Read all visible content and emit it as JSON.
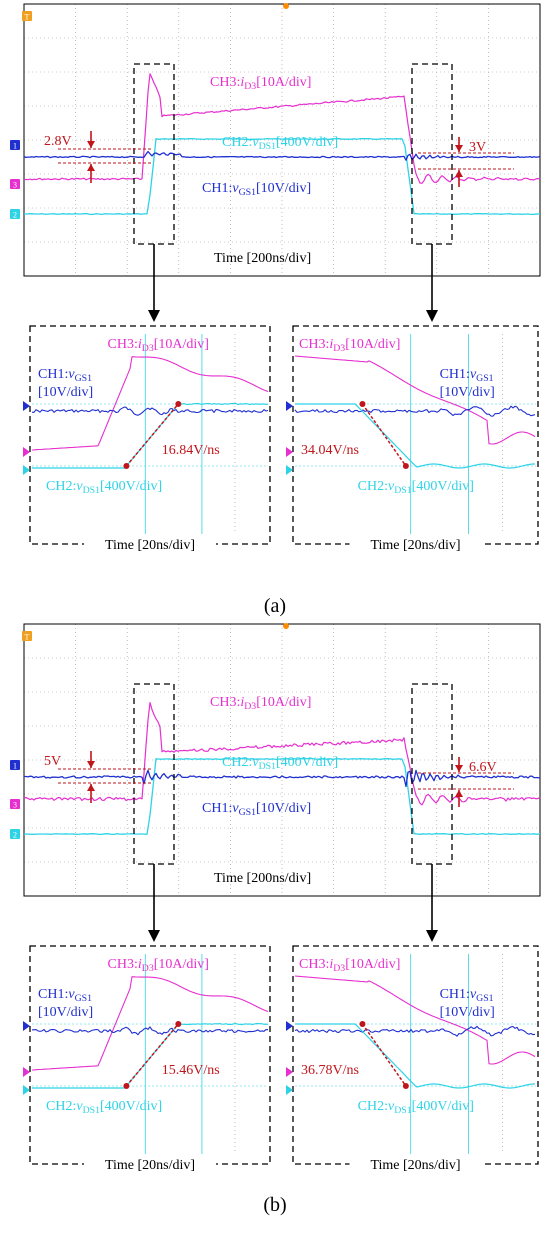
{
  "colors": {
    "ch1": "#1f2fd0",
    "ch2": "#2ed3e6",
    "ch3": "#e62fcf",
    "annotation": "#c0151b",
    "grid": "#9a9a9a",
    "ref_dot": "#ff8c00",
    "box": "#000000"
  },
  "panels": [
    {
      "label": "(a)",
      "main": {
        "time_label": "Time [200ns/div]",
        "ch3_label": {
          "pre": "CH3:",
          "var": "i",
          "sub": "D3",
          "post": "[10A/div]"
        },
        "ch2_label": {
          "pre": "CH2:",
          "var": "v",
          "sub": "DS1",
          "post": "[400V/div]"
        },
        "ch1_label": {
          "pre": "CH1:",
          "var": "v",
          "sub": "GS1",
          "post": "[10V/div]"
        },
        "left_annotation": "2.8V",
        "right_annotation": "3V"
      },
      "zoom_left": {
        "time_label": "Time [20ns/div]",
        "ch3_label": {
          "pre": "CH3:",
          "var": "i",
          "sub": "D3",
          "post": "[10A/div]"
        },
        "ch1_label_line1": {
          "pre": "CH1:",
          "var": "v",
          "sub": "GS1"
        },
        "ch1_label_line2": "[10V/div]",
        "ch2_label": {
          "pre": "CH2:",
          "var": "v",
          "sub": "DS1",
          "post": "[400V/div]"
        },
        "slope": "16.84V/ns"
      },
      "zoom_right": {
        "time_label": "Time [20ns/div]",
        "ch3_label": {
          "pre": "CH3:",
          "var": "i",
          "sub": "D3",
          "post": "[10A/div]"
        },
        "ch1_label_line1": {
          "pre": "CH1:",
          "var": "v",
          "sub": "GS1"
        },
        "ch1_label_line2": "[10V/div]",
        "ch2_label": {
          "pre": "CH2:",
          "var": "v",
          "sub": "DS1",
          "post": "[400V/div]"
        },
        "slope": "34.04V/ns"
      }
    },
    {
      "label": "(b)",
      "main": {
        "time_label": "Time [200ns/div]",
        "ch3_label": {
          "pre": "CH3:",
          "var": "i",
          "sub": "D3",
          "post": "[10A/div]"
        },
        "ch2_label": {
          "pre": "CH2:",
          "var": "v",
          "sub": "DS1",
          "post": "[400V/div]"
        },
        "ch1_label": {
          "pre": "CH1:",
          "var": "v",
          "sub": "GS1",
          "post": "[10V/div]"
        },
        "left_annotation": "5V",
        "right_annotation": "6.6V"
      },
      "zoom_left": {
        "time_label": "Time [20ns/div]",
        "ch3_label": {
          "pre": "CH3:",
          "var": "i",
          "sub": "D3",
          "post": "[10A/div]"
        },
        "ch1_label_line1": {
          "pre": "CH1:",
          "var": "v",
          "sub": "GS1"
        },
        "ch1_label_line2": "[10V/div]",
        "ch2_label": {
          "pre": "CH2:",
          "var": "v",
          "sub": "DS1",
          "post": "[400V/div]"
        },
        "slope": "15.46V/ns"
      },
      "zoom_right": {
        "time_label": "Time [20ns/div]",
        "ch3_label": {
          "pre": "CH3:",
          "var": "i",
          "sub": "D3",
          "post": "[10A/div]"
        },
        "ch1_label_line1": {
          "pre": "CH1:",
          "var": "v",
          "sub": "GS1"
        },
        "ch1_label_line2": "[10V/div]",
        "ch2_label": {
          "pre": "CH2:",
          "var": "v",
          "sub": "DS1",
          "post": "[400V/div]"
        },
        "slope": "36.78V/ns"
      }
    }
  ],
  "chart_data": [
    {
      "type": "line",
      "title": "",
      "panel": "(a)",
      "view": "main",
      "xlabel": "Time [200ns/div]",
      "series": [
        {
          "name": "CH3:iD3[10A/div]",
          "ratio_scale": "10A/div"
        },
        {
          "name": "CH2:vDS1[400V/div]",
          "ratio_scale": "400V/div"
        },
        {
          "name": "CH1:vGS1[10V/div]",
          "ratio_scale": "10V/div"
        }
      ],
      "annotations": [
        "2.8V",
        "3V"
      ]
    },
    {
      "type": "line",
      "title": "",
      "panel": "(a)",
      "view": "turn-on zoom",
      "xlabel": "Time [20ns/div]",
      "series": [
        {
          "name": "CH3:iD3[10A/div]"
        },
        {
          "name": "CH1:vGS1[10V/div]"
        },
        {
          "name": "CH2:vDS1[400V/div]"
        }
      ],
      "annotations": [
        "16.84V/ns"
      ]
    },
    {
      "type": "line",
      "title": "",
      "panel": "(a)",
      "view": "turn-off zoom",
      "xlabel": "Time [20ns/div]",
      "series": [
        {
          "name": "CH3:iD3[10A/div]"
        },
        {
          "name": "CH1:vGS1[10V/div]"
        },
        {
          "name": "CH2:vDS1[400V/div]"
        }
      ],
      "annotations": [
        "34.04V/ns"
      ]
    },
    {
      "type": "line",
      "title": "",
      "panel": "(b)",
      "view": "main",
      "xlabel": "Time [200ns/div]",
      "series": [
        {
          "name": "CH3:iD3[10A/div]"
        },
        {
          "name": "CH2:vDS1[400V/div]"
        },
        {
          "name": "CH1:vGS1[10V/div]"
        }
      ],
      "annotations": [
        "5V",
        "6.6V"
      ]
    },
    {
      "type": "line",
      "title": "",
      "panel": "(b)",
      "view": "turn-on zoom",
      "xlabel": "Time [20ns/div]",
      "series": [
        {
          "name": "CH3:iD3[10A/div]"
        },
        {
          "name": "CH1:vGS1[10V/div]"
        },
        {
          "name": "CH2:vDS1[400V/div]"
        }
      ],
      "annotations": [
        "15.46V/ns"
      ]
    },
    {
      "type": "line",
      "title": "",
      "panel": "(b)",
      "view": "turn-off zoom",
      "xlabel": "Time [20ns/div]",
      "series": [
        {
          "name": "CH3:iD3[10A/div]"
        },
        {
          "name": "CH1:vGS1[10V/div]"
        },
        {
          "name": "CH2:vDS1[400V/div]"
        }
      ],
      "annotations": [
        "36.78V/ns"
      ]
    }
  ]
}
